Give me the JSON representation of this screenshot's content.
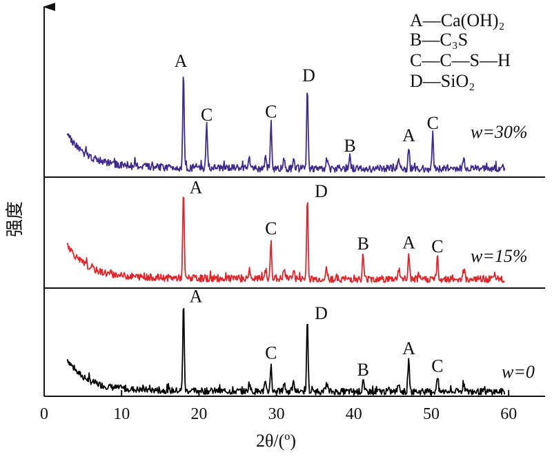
{
  "chart_data": {
    "type": "line",
    "xlabel": "2θ/(º)",
    "ylabel": "强度",
    "xlim": [
      0,
      65
    ],
    "x_ticks": [
      "0",
      "10",
      "20",
      "30",
      "40",
      "50",
      "60"
    ],
    "legend": [
      "A—Ca(OH)₂",
      "B—C₃S",
      "C—C—S—H",
      "D—SiO₂"
    ],
    "series": [
      {
        "name": "w=0",
        "color": "#000000",
        "peaks": [
          {
            "x": 18.0,
            "h": 0.98,
            "label": "A"
          },
          {
            "x": 29.3,
            "h": 0.3,
            "label": "C"
          },
          {
            "x": 34.0,
            "h": 0.8,
            "label": "D"
          },
          {
            "x": 41.2,
            "h": 0.12,
            "label": "B"
          },
          {
            "x": 47.1,
            "h": 0.35,
            "label": "A"
          },
          {
            "x": 50.8,
            "h": 0.16,
            "label": "C"
          }
        ]
      },
      {
        "name": "w=15%",
        "color": "#e0252a",
        "peaks": [
          {
            "x": 18.0,
            "h": 0.88,
            "label": "A"
          },
          {
            "x": 29.3,
            "h": 0.4,
            "label": "C"
          },
          {
            "x": 34.0,
            "h": 0.84,
            "label": "D"
          },
          {
            "x": 41.2,
            "h": 0.25,
            "label": "B"
          },
          {
            "x": 47.1,
            "h": 0.26,
            "label": "A"
          },
          {
            "x": 50.8,
            "h": 0.22,
            "label": "C"
          }
        ]
      },
      {
        "name": "w=30%",
        "color": "#3f2a8c",
        "peaks": [
          {
            "x": 18.0,
            "h": 0.94,
            "label": "A"
          },
          {
            "x": 21.0,
            "h": 0.42,
            "label": "C"
          },
          {
            "x": 29.3,
            "h": 0.45,
            "label": "C"
          },
          {
            "x": 34.0,
            "h": 0.8,
            "label": "D"
          },
          {
            "x": 39.5,
            "h": 0.12,
            "label": "B"
          },
          {
            "x": 47.1,
            "h": 0.22,
            "label": "A"
          },
          {
            "x": 50.2,
            "h": 0.34,
            "label": "C"
          }
        ]
      }
    ]
  }
}
